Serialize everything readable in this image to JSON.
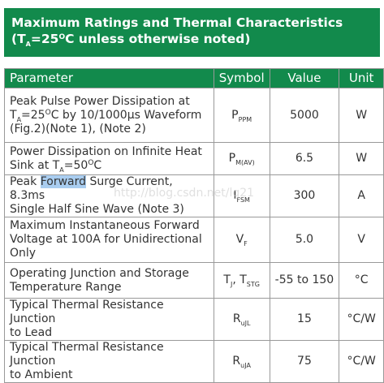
{
  "header": {
    "title": "Maximum Ratings and Thermal Characteristics",
    "subtitle": [
      "(T",
      "A",
      "=25",
      "O",
      "C unless otherwise noted)"
    ]
  },
  "watermark": "http://blog.csdn.net/lg21",
  "table": {
    "columns": [
      "Parameter",
      "Symbol",
      "Value",
      "Unit"
    ],
    "rows": [
      {
        "parameter": [
          [
            "Peak Pulse Power Dissipation at"
          ],
          [
            "T",
            "A",
            "=25",
            "O",
            "C by 10/1000µs Waveform"
          ],
          [
            "(Fig.2)(Note 1), (Note 2)"
          ]
        ],
        "symbol": [
          "P",
          "PPM"
        ],
        "value": "5000",
        "unit": "W"
      },
      {
        "parameter": [
          [
            "Power Dissipation on Infinite Heat"
          ],
          [
            "Sink at T",
            "A",
            "=50",
            "O",
            "C"
          ]
        ],
        "symbol": [
          "P",
          "M(AV)"
        ],
        "value": "6.5",
        "unit": "W"
      },
      {
        "parameter": [
          [
            "Peak ",
            "Forward",
            " Surge Current, 8.3ms"
          ],
          [
            "Single Half Sine Wave (Note 3)"
          ]
        ],
        "symbol": [
          "I",
          "FSM"
        ],
        "value": "300",
        "unit": "A"
      },
      {
        "parameter": [
          [
            "Maximum Instantaneous Forward"
          ],
          [
            "Voltage at 100A for Unidirectional"
          ],
          [
            "Only"
          ]
        ],
        "symbol": [
          "V",
          "F"
        ],
        "value": "5.0",
        "unit": "V"
      },
      {
        "parameter": [
          [
            "Operating Junction and Storage"
          ],
          [
            "Temperature Range"
          ]
        ],
        "symbol": [
          "T",
          "J",
          ", T",
          "STG"
        ],
        "value": "-55 to 150",
        "unit": "°C"
      },
      {
        "parameter": [
          [
            "Typical Thermal Resistance Junction"
          ],
          [
            "to Lead"
          ]
        ],
        "symbol": [
          "R",
          "uJL"
        ],
        "value": "15",
        "unit": "°C/W"
      },
      {
        "parameter": [
          [
            "Typical Thermal Resistance Junction"
          ],
          [
            "to Ambient"
          ]
        ],
        "symbol": [
          "R",
          "uJA"
        ],
        "value": "75",
        "unit": "°C/W"
      }
    ]
  }
}
